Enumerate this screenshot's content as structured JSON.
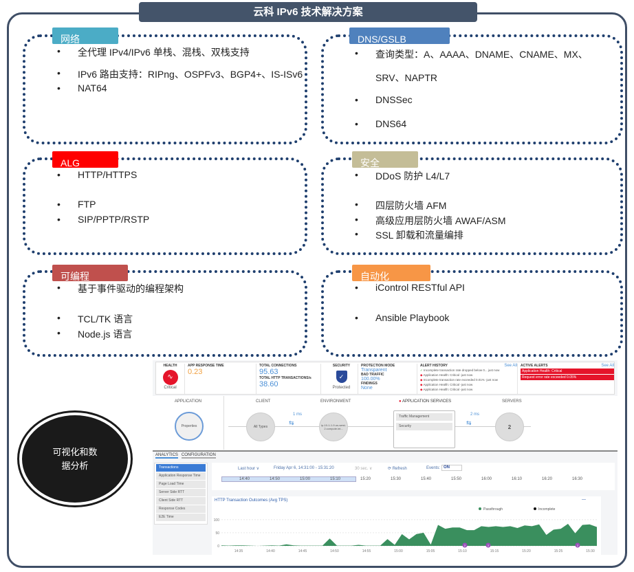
{
  "title": "云科 IPv6 技术解决方案",
  "panels": [
    {
      "label": "网络",
      "color": "#4bacc6",
      "items": [
        "全代理 IPv4/IPv6 单栈、混栈、双栈支持",
        "IPv6 路由支持：RIPng、OSPFv3、BGP4+、IS-ISv6",
        "NAT64"
      ]
    },
    {
      "label": "DNS/GSLB",
      "color": "#4f81bd",
      "items": [
        "查询类型：A、AAAA、DNAME、CNAME、MX、",
        "SRV、NAPTR",
        "DNSSec",
        "DNS64"
      ]
    },
    {
      "label": "ALG",
      "color": "#ff0000",
      "items": [
        "HTTP/HTTPS",
        "FTP",
        "SIP/PPTP/RSTP"
      ]
    },
    {
      "label": "安全",
      "color": "#c4bd97",
      "items": [
        "DDoS 防护 L4/L7",
        "四层防火墙 AFM",
        "高级应用层防火墙 AWAF/ASM",
        "SSL 卸载和流量编排"
      ]
    },
    {
      "label": "可编程",
      "color": "#c0504d",
      "items": [
        "基于事件驱动的编程架构",
        "TCL/TK 语言",
        "Node.js 语言"
      ]
    },
    {
      "label": "自动化",
      "color": "#f79646",
      "items": [
        "iControl RESTful API",
        "Ansible Playbook"
      ]
    }
  ],
  "bullet": "•",
  "oval_text": "可视化和数据分析",
  "dashboard": {
    "health": {
      "label": "HEALTH",
      "status": "Critical"
    },
    "app_response": {
      "label": "APP RESPONSE TIME",
      "value": "0.23"
    },
    "connections": {
      "label": "TOTAL CONNECTIONS",
      "value": "95.63",
      "label2": "TOTAL HTTP TRANSACTIONS/s",
      "value2": "38.60"
    },
    "security": {
      "label": "SECURITY",
      "status": "Protected"
    },
    "protection": {
      "mode_label": "PROTECTION MODE",
      "mode": "Transparent",
      "bad_label": "BAD TRAFFIC",
      "bad": "100.00%",
      "findings_label": "FINDINGS",
      "findings": "None"
    },
    "alert_history": {
      "label": "ALERT HISTORY",
      "see_all": "See All",
      "items": [
        "Incomplete transaction rate dropped below 0... just now",
        "Application Health: Critical -just now",
        "Incomplete transaction rate exceeded 0.01% -just now",
        "Application Health: Critical -just now",
        "Application Health: Critical -just now"
      ]
    },
    "active_alerts": {
      "label": "ACTIVE ALERTS",
      "see_all": "See All",
      "items": [
        "Application Health: Critical",
        "Request error rate exceeded 0.05%"
      ]
    },
    "flow": {
      "application": "APPLICATION",
      "properties": "Properties",
      "client": "CLIENT",
      "all_types": "All Types",
      "client_latency": "1 ms",
      "environment": "ENVIRONMENT",
      "env_node": "ip-10-1-1-9.us-west-2.compute.int...",
      "app_services": "APPLICATION SERVICES",
      "traffic_mgmt": "Traffic Management",
      "security": "Security",
      "server_latency": "2 ms",
      "servers": "SERVERS",
      "server_count": "2"
    },
    "tabs": [
      "ANALYTICS",
      "CONFIGURATION"
    ],
    "side_menu": [
      "Transactions",
      "Application Response Time",
      "Page Load Time",
      "Server Side RTT",
      "Client Side RTT",
      "Response Codes",
      "E2E Time"
    ],
    "toolbar": {
      "range": "Last hour ∨",
      "period": "Friday Apr 6, 14:31:00 - 15:31:20",
      "interval": "30 sec. ∨",
      "refresh": "⟳ Refresh",
      "events_label": "Events:",
      "events_value": "ON"
    },
    "timeline": [
      "14:40",
      "14:50",
      "15:00",
      "15:10",
      "15:20",
      "15:30",
      "15:40",
      "15:50",
      "16:00",
      "16:10",
      "16:20",
      "16:30"
    ]
  },
  "chart_data": {
    "type": "area",
    "title": "HTTP Transaction Outcomes (Avg TPS)",
    "legend": [
      "Passthrough",
      "Incomplete"
    ],
    "legend_placement": "top-right",
    "colors": {
      "Passthrough": "#3a8f5e",
      "Incomplete": "#111111"
    },
    "x_ticks": [
      "14:35",
      "14:40",
      "14:45",
      "14:50",
      "14:55",
      "15:00",
      "15:05",
      "15:10",
      "15:15",
      "15:20",
      "15:25",
      "15:30"
    ],
    "y_ticks": [
      0,
      50,
      100
    ],
    "ylim": [
      0,
      110
    ],
    "grid": true,
    "series": [
      {
        "name": "Passthrough",
        "values": [
          2,
          1,
          2,
          2,
          1,
          0,
          1,
          2,
          1,
          6,
          2,
          1,
          1,
          1,
          1,
          28,
          1,
          1,
          1,
          4,
          1,
          1,
          1,
          26,
          4,
          45,
          25,
          45,
          50,
          5,
          80,
          65,
          70,
          70,
          60,
          60,
          75,
          72,
          75,
          72,
          75,
          68,
          78,
          75,
          82,
          42,
          62,
          65,
          84,
          48,
          80,
          82,
          72
        ]
      }
    ],
    "event_markers": [
      "2",
      "2",
      "2"
    ]
  }
}
